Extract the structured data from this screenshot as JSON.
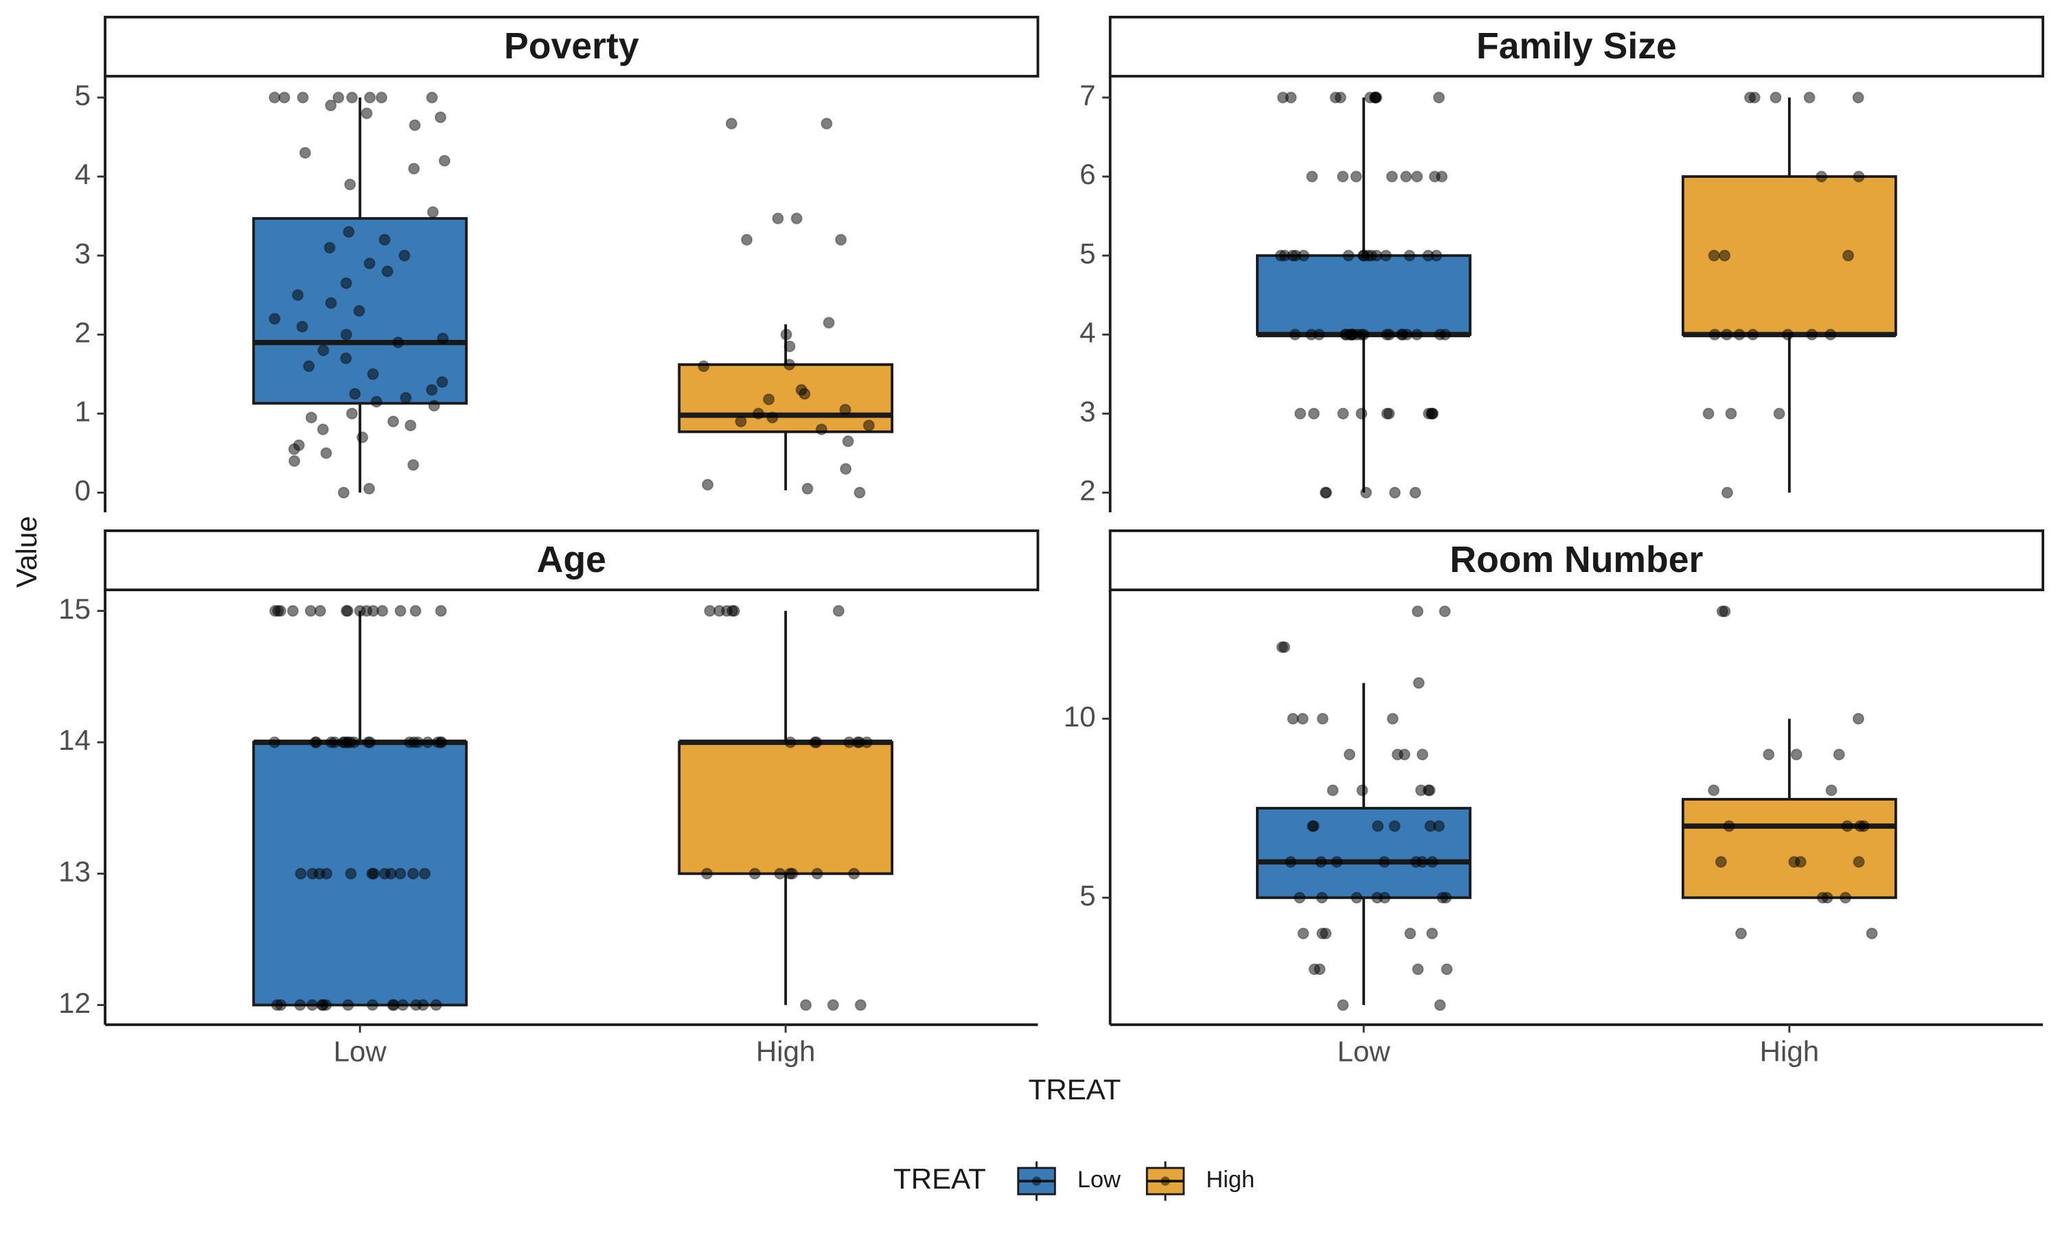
{
  "xlabel": "TREAT",
  "ylabel": "Value",
  "legend_title": "TREAT",
  "chart_data": [
    {
      "type": "box",
      "title": "Poverty",
      "ylim": [
        -0.25,
        5.27
      ],
      "yticks": [
        0,
        1,
        2,
        3,
        4,
        5
      ],
      "series": [
        {
          "name": "Low",
          "color": "#3a7bb7",
          "box": {
            "min": 0,
            "q1": 1.13,
            "median": 1.9,
            "q3": 3.47,
            "max": 5
          },
          "points": [
            5,
            5,
            5,
            5,
            5,
            5,
            5,
            5,
            4.9,
            4.8,
            4.75,
            4.65,
            4.3,
            4.2,
            4.1,
            3.9,
            3.55,
            3.3,
            3.2,
            3.1,
            3.0,
            2.9,
            2.8,
            2.65,
            2.5,
            2.4,
            2.3,
            2.2,
            2.1,
            2.0,
            1.95,
            1.9,
            1.8,
            1.7,
            1.6,
            1.5,
            1.4,
            1.3,
            1.25,
            1.2,
            1.15,
            1.1,
            1.0,
            0.95,
            0.9,
            0.85,
            0.8,
            0.7,
            0.6,
            0.55,
            0.5,
            0.4,
            0.35,
            0.05,
            0
          ]
        },
        {
          "name": "High",
          "color": "#e5a53a",
          "box": {
            "min": 0.03,
            "q1": 0.77,
            "median": 0.98,
            "q3": 1.62,
            "max": 2.13
          },
          "points": [
            4.67,
            4.67,
            3.47,
            3.47,
            3.2,
            3.2,
            2.15,
            2.0,
            1.85,
            1.62,
            1.6,
            1.3,
            1.25,
            1.18,
            1.05,
            1.0,
            0.95,
            0.9,
            0.85,
            0.8,
            0.65,
            0.3,
            0.1,
            0.05,
            0
          ]
        }
      ]
    },
    {
      "type": "box",
      "title": "Family Size",
      "ylim": [
        1.75,
        7.27
      ],
      "yticks": [
        2,
        3,
        4,
        5,
        6,
        7
      ],
      "series": [
        {
          "name": "Low",
          "color": "#3a7bb7",
          "box": {
            "min": 2,
            "q1": 4,
            "median": 4,
            "q3": 5,
            "max": 7
          },
          "points": [
            7,
            7,
            7,
            7,
            7,
            7,
            7,
            7,
            7,
            7,
            6,
            6,
            6,
            6,
            6,
            6,
            6,
            6,
            5,
            5,
            5,
            5,
            5,
            5,
            5,
            5,
            5,
            5,
            5,
            5,
            5,
            5,
            5,
            4,
            4,
            4,
            4,
            4,
            4,
            4,
            4,
            4,
            4,
            4,
            4,
            4,
            4,
            4,
            4,
            4,
            4,
            4,
            4,
            3,
            3,
            3,
            3,
            3,
            3,
            3,
            3,
            3,
            3,
            2,
            2,
            2,
            2,
            2
          ]
        },
        {
          "name": "High",
          "color": "#e5a53a",
          "box": {
            "min": 2,
            "q1": 4,
            "median": 4,
            "q3": 6,
            "max": 7
          },
          "points": [
            7,
            7,
            7,
            7,
            7,
            6,
            6,
            5,
            5,
            5,
            4,
            4,
            4,
            4,
            4,
            4,
            4,
            3,
            3,
            3,
            2
          ]
        }
      ]
    },
    {
      "type": "box",
      "title": "Age",
      "ylim": [
        11.85,
        15.16
      ],
      "yticks": [
        12,
        13,
        14,
        15
      ],
      "series": [
        {
          "name": "Low",
          "color": "#3a7bb7",
          "box": {
            "min": 12,
            "q1": 12,
            "median": 14,
            "q3": 14,
            "max": 15
          },
          "points": [
            15,
            15,
            15,
            15,
            15,
            15,
            15,
            15,
            15,
            15,
            15,
            15,
            15,
            15,
            15,
            14,
            14,
            14,
            14,
            14,
            14,
            14,
            14,
            14,
            14,
            14,
            14,
            14,
            14,
            14,
            14,
            14,
            14,
            14,
            14,
            13,
            13,
            13,
            13,
            13,
            13,
            13,
            13,
            13,
            13,
            13,
            13,
            12,
            12,
            12,
            12,
            12,
            12,
            12,
            12,
            12,
            12,
            12,
            12,
            12,
            12,
            12
          ]
        },
        {
          "name": "High",
          "color": "#e5a53a",
          "box": {
            "min": 12,
            "q1": 13,
            "median": 14,
            "q3": 14,
            "max": 15
          },
          "points": [
            15,
            15,
            15,
            15,
            15,
            15,
            14,
            14,
            14,
            14,
            14,
            14,
            14,
            13,
            13,
            13,
            13,
            13,
            13,
            13,
            12,
            12,
            12
          ]
        }
      ]
    },
    {
      "type": "box",
      "title": "Room Number",
      "ylim": [
        1.45,
        13.6
      ],
      "yticks": [
        5,
        10
      ],
      "series": [
        {
          "name": "Low",
          "color": "#3a7bb7",
          "box": {
            "min": 2,
            "q1": 5,
            "median": 6,
            "q3": 7.5,
            "max": 11
          },
          "points": [
            13,
            13,
            12,
            12,
            11,
            10,
            10,
            10,
            10,
            9,
            9,
            9,
            9,
            8,
            8,
            8,
            8,
            8,
            7,
            7,
            7,
            7,
            7,
            7,
            6,
            6,
            6,
            6,
            6,
            6,
            6,
            5,
            5,
            5,
            5,
            5,
            5,
            5,
            4,
            4,
            4,
            4,
            4,
            3,
            3,
            3,
            3,
            2,
            2
          ]
        },
        {
          "name": "High",
          "color": "#e5a53a",
          "box": {
            "min": 5,
            "q1": 5,
            "median": 7,
            "q3": 7.75,
            "max": 10
          },
          "points": [
            13,
            13,
            10,
            9,
            9,
            9,
            8,
            8,
            7,
            7,
            7,
            7,
            6,
            6,
            6,
            6,
            5,
            5,
            5,
            4,
            4
          ]
        }
      ]
    }
  ]
}
